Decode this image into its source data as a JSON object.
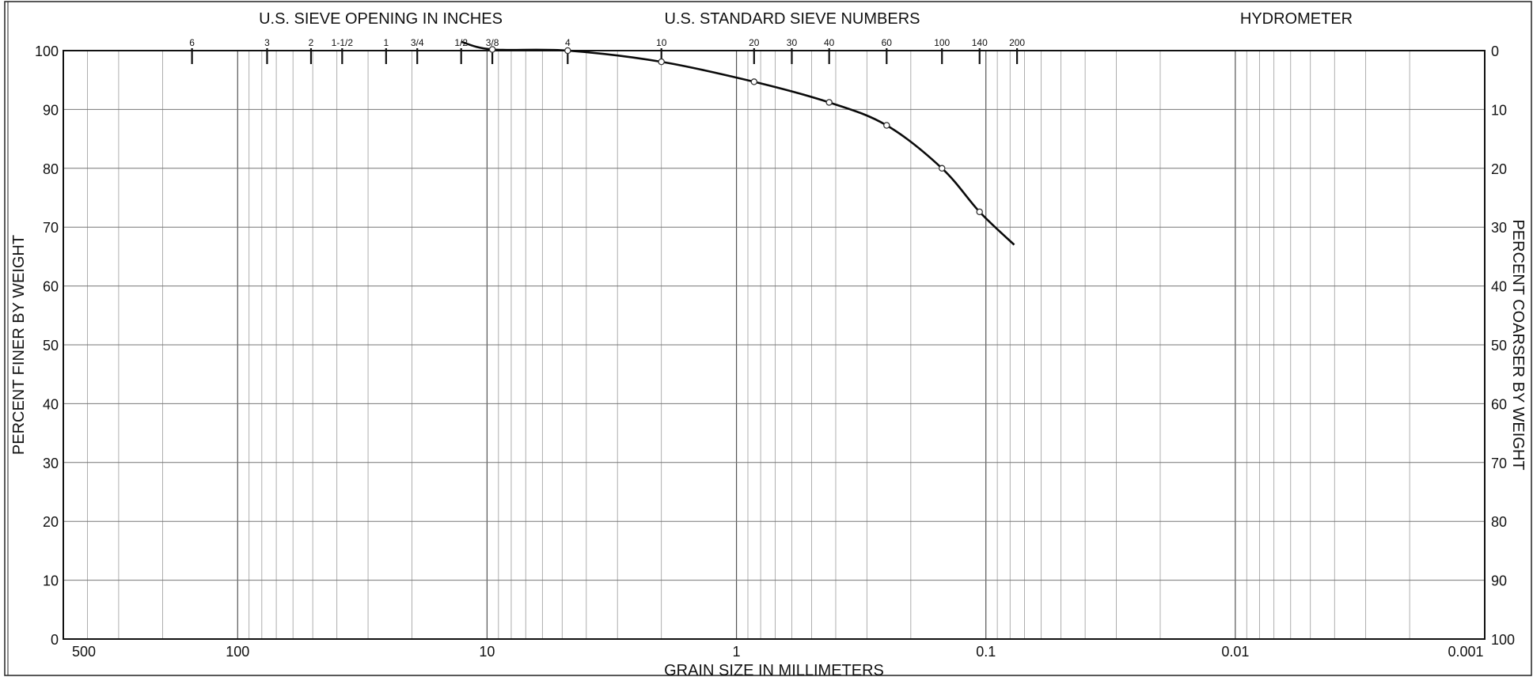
{
  "header": {
    "sieve_inches_title": "U.S. SIEVE OPENING IN INCHES",
    "standard_sieve_title": "U.S. STANDARD SIEVE NUMBERS",
    "hydrometer_title": "HYDROMETER"
  },
  "chart_data": {
    "type": "line",
    "xlabel": "GRAIN SIZE IN MILLIMETERS",
    "ylabel_left": "PERCENT FINER BY WEIGHT",
    "ylabel_right": "PERCENT COARSER BY WEIGHT",
    "x_scale": "log",
    "x_reversed": true,
    "xlim": [
      500,
      0.001
    ],
    "ylim": [
      0,
      100
    ],
    "x_ticks": [
      {
        "value": 500,
        "label": "500"
      },
      {
        "value": 100,
        "label": "100"
      },
      {
        "value": 10,
        "label": "10"
      },
      {
        "value": 1,
        "label": "1"
      },
      {
        "value": 0.1,
        "label": "0.1"
      },
      {
        "value": 0.01,
        "label": "0.01"
      },
      {
        "value": 0.001,
        "label": "0.001"
      }
    ],
    "y_ticks_left": [
      "0",
      "10",
      "20",
      "30",
      "40",
      "50",
      "60",
      "70",
      "80",
      "90",
      "100"
    ],
    "y_ticks_right": [
      "100",
      "90",
      "80",
      "70",
      "60",
      "50",
      "40",
      "30",
      "20",
      "10",
      "0"
    ],
    "sieve_inch_ticks": [
      {
        "label": "6",
        "size_mm": 152.4
      },
      {
        "label": "3",
        "size_mm": 76.2
      },
      {
        "label": "2",
        "size_mm": 50.8
      },
      {
        "label": "1-1/2",
        "size_mm": 38.1
      },
      {
        "label": "1",
        "size_mm": 25.4
      },
      {
        "label": "3/4",
        "size_mm": 19.05
      },
      {
        "label": "1/2",
        "size_mm": 12.7
      },
      {
        "label": "3/8",
        "size_mm": 9.525
      }
    ],
    "sieve_number_ticks": [
      {
        "label": "4",
        "size_mm": 4.75
      },
      {
        "label": "10",
        "size_mm": 2.0
      },
      {
        "label": "20",
        "size_mm": 0.85
      },
      {
        "label": "30",
        "size_mm": 0.6
      },
      {
        "label": "40",
        "size_mm": 0.425
      },
      {
        "label": "60",
        "size_mm": 0.25
      },
      {
        "label": "100",
        "size_mm": 0.15
      },
      {
        "label": "140",
        "size_mm": 0.106
      },
      {
        "label": "200",
        "size_mm": 0.075
      }
    ],
    "grid": true,
    "series": [
      {
        "x": [
          12.7,
          9.525,
          4.75,
          2.0,
          0.85,
          0.425,
          0.25,
          0.15,
          0.106,
          0.077
        ],
        "y": [
          101.5,
          100.2,
          100.0,
          98.1,
          94.7,
          91.2,
          87.3,
          80.0,
          72.6,
          67.0
        ],
        "markers": [
          false,
          true,
          true,
          true,
          true,
          true,
          true,
          true,
          true,
          false
        ]
      }
    ]
  }
}
